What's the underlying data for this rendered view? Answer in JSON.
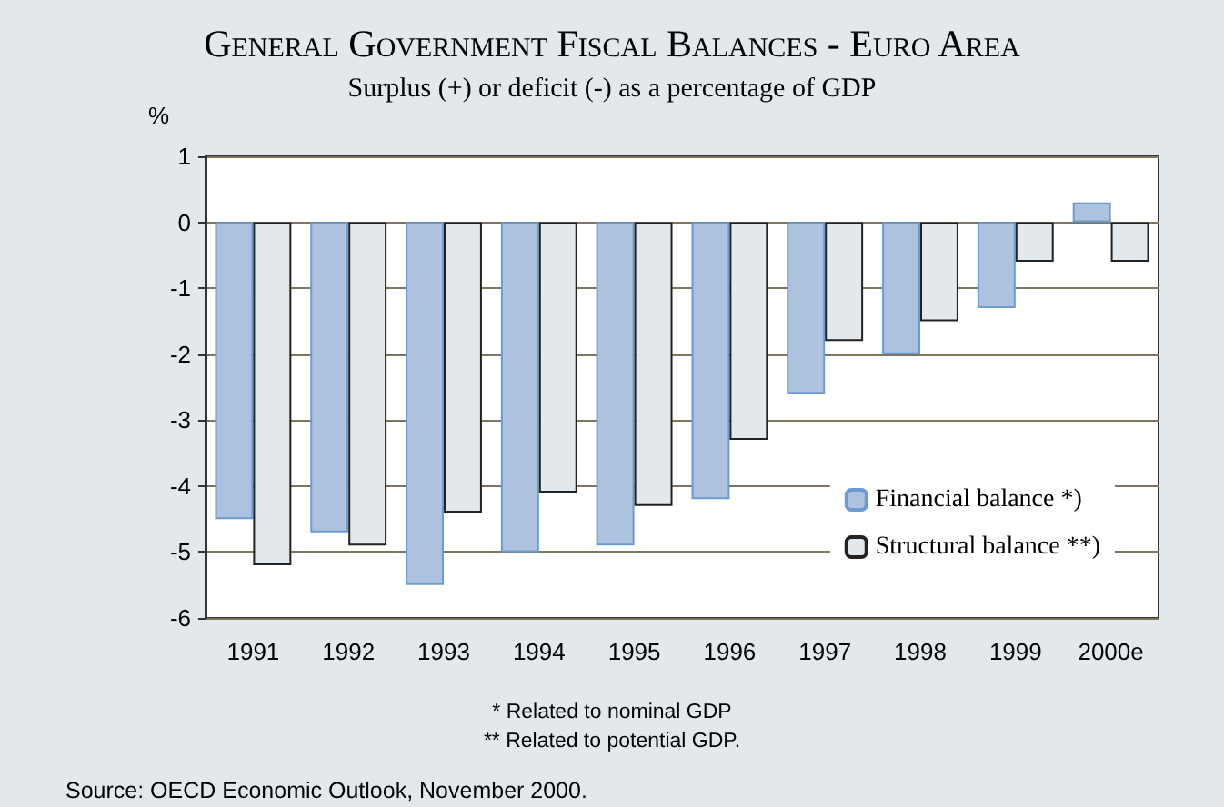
{
  "chart_data": {
    "type": "bar",
    "title": "General Government Fiscal Balances - Euro Area",
    "subtitle": "Surplus (+) or deficit (-) as a percentage of GDP",
    "ylabel": "%",
    "categories": [
      "1991",
      "1992",
      "1993",
      "1994",
      "1995",
      "1996",
      "1997",
      "1998",
      "1999",
      "2000e"
    ],
    "series": [
      {
        "name": "Financial balance *)",
        "color": "#adc2df",
        "values": [
          -4.5,
          -4.7,
          -5.5,
          -5.0,
          -4.9,
          -4.2,
          -2.6,
          -2.0,
          -1.3,
          0.3
        ]
      },
      {
        "name": "Structural balance **)",
        "color": "#e3e8ed",
        "values": [
          -5.2,
          -4.9,
          -4.4,
          -4.1,
          -4.3,
          -3.3,
          -1.8,
          -1.5,
          -0.6,
          -0.6
        ]
      }
    ],
    "ylim": [
      -6,
      1
    ],
    "yticks": [
      -6,
      -5,
      -4,
      -3,
      -2,
      -1,
      0,
      1
    ],
    "grid": "y",
    "legend": "bottom right",
    "annotations": [
      "* Related to nominal GDP",
      "** Related to potential GDP.",
      "Source: OECD Economic Outlook, November 2000."
    ]
  }
}
